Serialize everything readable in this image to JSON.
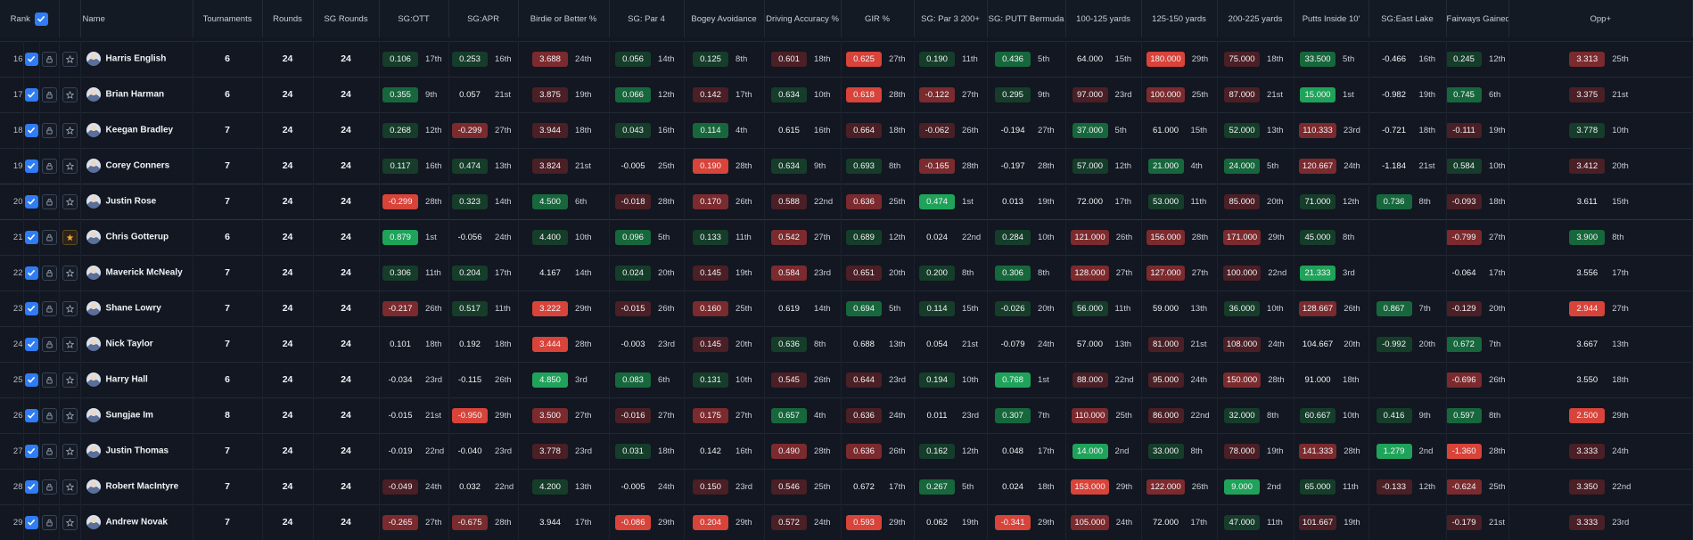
{
  "columns": {
    "rank": "Rank",
    "name": "Name",
    "tournaments": "Tournaments",
    "rounds": "Rounds",
    "sg_rounds": "SG Rounds",
    "stats": [
      "SG:OTT",
      "SG:APR",
      "Birdie or Better %",
      "SG: Par 4",
      "Bogey Avoidance",
      "Driving Accuracy %",
      "GIR %",
      "SG: Par 3 200+",
      "SG: PUTT Bermuda",
      "100-125 yards",
      "125-150 yards",
      "200-225 yards",
      "Putts Inside 10'",
      "SG:East Lake",
      "Fairways Gained",
      "Opp+"
    ]
  },
  "colors": {
    "strong_green": "#1fa35a",
    "green": "#17673c",
    "light_green": "#153d2a",
    "light_red": "#4a1f25",
    "red": "#7b2a2e",
    "strong_red": "#d8433a",
    "accent": "#2f7cf5"
  },
  "rows": [
    {
      "rank": "16",
      "name": "Harris English",
      "tournaments": "6",
      "rounds": "24",
      "sg_rounds": "24",
      "fav": false,
      "stats": [
        [
          "0.106",
          "17th",
          "g3"
        ],
        [
          "0.253",
          "16th",
          "g3"
        ],
        [
          "3.688",
          "24th",
          "r2"
        ],
        [
          "0.056",
          "14th",
          "g3"
        ],
        [
          "0.125",
          "8th",
          "g3"
        ],
        [
          "0.601",
          "18th",
          "r3"
        ],
        [
          "0.625",
          "27th",
          "sr"
        ],
        [
          "0.190",
          "11th",
          "g3"
        ],
        [
          "0.436",
          "5th",
          "g2"
        ],
        [
          "64.000",
          "15th",
          "n"
        ],
        [
          "180.000",
          "29th",
          "sr"
        ],
        [
          "75.000",
          "18th",
          "r3"
        ],
        [
          "33.500",
          "5th",
          "g2"
        ],
        [
          "-0.466",
          "16th",
          "n"
        ],
        [
          "0.245",
          "12th",
          "g3"
        ],
        [
          "3.313",
          "25th",
          "r2"
        ]
      ]
    },
    {
      "rank": "17",
      "name": "Brian Harman",
      "tournaments": "6",
      "rounds": "24",
      "sg_rounds": "24",
      "fav": false,
      "stats": [
        [
          "0.355",
          "9th",
          "g2"
        ],
        [
          "0.057",
          "21st",
          "n"
        ],
        [
          "3.875",
          "19th",
          "r3"
        ],
        [
          "0.066",
          "12th",
          "g2"
        ],
        [
          "0.142",
          "17th",
          "r3"
        ],
        [
          "0.634",
          "10th",
          "g3"
        ],
        [
          "0.618",
          "28th",
          "sr"
        ],
        [
          "-0.122",
          "27th",
          "r2"
        ],
        [
          "0.295",
          "9th",
          "g3"
        ],
        [
          "97.000",
          "23rd",
          "r3"
        ],
        [
          "100.000",
          "25th",
          "r2"
        ],
        [
          "87.000",
          "21st",
          "r3"
        ],
        [
          "15.000",
          "1st",
          "sg"
        ],
        [
          "-0.982",
          "19th",
          "n"
        ],
        [
          "0.745",
          "6th",
          "g2"
        ],
        [
          "3.375",
          "21st",
          "r3"
        ]
      ]
    },
    {
      "rank": "18",
      "name": "Keegan Bradley",
      "tournaments": "7",
      "rounds": "24",
      "sg_rounds": "24",
      "fav": false,
      "stats": [
        [
          "0.268",
          "12th",
          "g3"
        ],
        [
          "-0.299",
          "27th",
          "r2"
        ],
        [
          "3.944",
          "18th",
          "r3"
        ],
        [
          "0.043",
          "16th",
          "g3"
        ],
        [
          "0.114",
          "4th",
          "g2"
        ],
        [
          "0.615",
          "16th",
          "n"
        ],
        [
          "0.664",
          "18th",
          "r3"
        ],
        [
          "-0.062",
          "26th",
          "r3"
        ],
        [
          "-0.194",
          "27th",
          "n"
        ],
        [
          "37.000",
          "5th",
          "g2"
        ],
        [
          "61.000",
          "15th",
          "n"
        ],
        [
          "52.000",
          "13th",
          "g3"
        ],
        [
          "110.333",
          "23rd",
          "r2"
        ],
        [
          "-0.721",
          "18th",
          "n"
        ],
        [
          "-0.111",
          "19th",
          "r3"
        ],
        [
          "3.778",
          "10th",
          "g3"
        ]
      ]
    },
    {
      "rank": "19",
      "name": "Corey Conners",
      "tournaments": "7",
      "rounds": "24",
      "sg_rounds": "24",
      "fav": false,
      "stats": [
        [
          "0.117",
          "16th",
          "g3"
        ],
        [
          "0.474",
          "13th",
          "g3"
        ],
        [
          "3.824",
          "21st",
          "r3"
        ],
        [
          "-0.005",
          "25th",
          "n"
        ],
        [
          "0.190",
          "28th",
          "sr"
        ],
        [
          "0.634",
          "9th",
          "g3"
        ],
        [
          "0.693",
          "8th",
          "g3"
        ],
        [
          "-0.165",
          "28th",
          "r2"
        ],
        [
          "-0.197",
          "28th",
          "n"
        ],
        [
          "57.000",
          "12th",
          "g3"
        ],
        [
          "21.000",
          "4th",
          "g2"
        ],
        [
          "24.000",
          "5th",
          "g2"
        ],
        [
          "120.667",
          "24th",
          "r2"
        ],
        [
          "-1.184",
          "21st",
          "n"
        ],
        [
          "0.584",
          "10th",
          "g3"
        ],
        [
          "3.412",
          "20th",
          "r3"
        ]
      ]
    },
    {
      "rank": "20",
      "name": "Justin Rose",
      "tournaments": "7",
      "rounds": "24",
      "sg_rounds": "24",
      "fav": false,
      "stats": [
        [
          "-0.299",
          "28th",
          "sr"
        ],
        [
          "0.323",
          "14th",
          "g3"
        ],
        [
          "4.500",
          "6th",
          "g2"
        ],
        [
          "-0.018",
          "28th",
          "r3"
        ],
        [
          "0.170",
          "26th",
          "r2"
        ],
        [
          "0.588",
          "22nd",
          "r3"
        ],
        [
          "0.636",
          "25th",
          "r2"
        ],
        [
          "0.474",
          "1st",
          "sg"
        ],
        [
          "0.013",
          "19th",
          "n"
        ],
        [
          "72.000",
          "17th",
          "n"
        ],
        [
          "53.000",
          "11th",
          "g3"
        ],
        [
          "85.000",
          "20th",
          "r3"
        ],
        [
          "71.000",
          "12th",
          "g3"
        ],
        [
          "0.736",
          "8th",
          "g2"
        ],
        [
          "-0.093",
          "18th",
          "r3"
        ],
        [
          "3.611",
          "15th",
          "n"
        ]
      ]
    },
    {
      "rank": "21",
      "name": "Chris Gotterup",
      "tournaments": "6",
      "rounds": "24",
      "sg_rounds": "24",
      "fav": true,
      "stats": [
        [
          "0.879",
          "1st",
          "sg"
        ],
        [
          "-0.056",
          "24th",
          "n"
        ],
        [
          "4.400",
          "10th",
          "g3"
        ],
        [
          "0.096",
          "5th",
          "g2"
        ],
        [
          "0.133",
          "11th",
          "g3"
        ],
        [
          "0.542",
          "27th",
          "r2"
        ],
        [
          "0.689",
          "12th",
          "g3"
        ],
        [
          "0.024",
          "22nd",
          "n"
        ],
        [
          "0.284",
          "10th",
          "g3"
        ],
        [
          "121.000",
          "26th",
          "r2"
        ],
        [
          "156.000",
          "28th",
          "r2"
        ],
        [
          "171.000",
          "29th",
          "r2"
        ],
        [
          "45.000",
          "8th",
          "g3"
        ],
        [
          "",
          "",
          ""
        ],
        [
          "-0.799",
          "27th",
          "r2"
        ],
        [
          "3.900",
          "8th",
          "g2"
        ]
      ]
    },
    {
      "rank": "22",
      "name": "Maverick McNealy",
      "tournaments": "7",
      "rounds": "24",
      "sg_rounds": "24",
      "fav": false,
      "stats": [
        [
          "0.306",
          "11th",
          "g3"
        ],
        [
          "0.204",
          "17th",
          "g3"
        ],
        [
          "4.167",
          "14th",
          "n"
        ],
        [
          "0.024",
          "20th",
          "g3"
        ],
        [
          "0.145",
          "19th",
          "r3"
        ],
        [
          "0.584",
          "23rd",
          "r2"
        ],
        [
          "0.651",
          "20th",
          "r3"
        ],
        [
          "0.200",
          "8th",
          "g3"
        ],
        [
          "0.306",
          "8th",
          "g2"
        ],
        [
          "128.000",
          "27th",
          "r2"
        ],
        [
          "127.000",
          "27th",
          "r2"
        ],
        [
          "100.000",
          "22nd",
          "r3"
        ],
        [
          "21.333",
          "3rd",
          "sg"
        ],
        [
          "",
          "",
          ""
        ],
        [
          "-0.064",
          "17th",
          "n"
        ],
        [
          "3.556",
          "17th",
          "n"
        ]
      ]
    },
    {
      "rank": "23",
      "name": "Shane Lowry",
      "tournaments": "7",
      "rounds": "24",
      "sg_rounds": "24",
      "fav": false,
      "stats": [
        [
          "-0.217",
          "26th",
          "r2"
        ],
        [
          "0.517",
          "11th",
          "g3"
        ],
        [
          "3.222",
          "29th",
          "sr"
        ],
        [
          "-0.015",
          "26th",
          "r3"
        ],
        [
          "0.160",
          "25th",
          "r2"
        ],
        [
          "0.619",
          "14th",
          "n"
        ],
        [
          "0.694",
          "5th",
          "g2"
        ],
        [
          "0.114",
          "15th",
          "g3"
        ],
        [
          "-0.026",
          "20th",
          "g3"
        ],
        [
          "56.000",
          "11th",
          "g3"
        ],
        [
          "59.000",
          "13th",
          "n"
        ],
        [
          "36.000",
          "10th",
          "g3"
        ],
        [
          "128.667",
          "26th",
          "r2"
        ],
        [
          "0.867",
          "7th",
          "g2"
        ],
        [
          "-0.129",
          "20th",
          "r3"
        ],
        [
          "2.944",
          "27th",
          "sr"
        ]
      ]
    },
    {
      "rank": "24",
      "name": "Nick Taylor",
      "tournaments": "7",
      "rounds": "24",
      "sg_rounds": "24",
      "fav": false,
      "stats": [
        [
          "0.101",
          "18th",
          "n"
        ],
        [
          "0.192",
          "18th",
          "n"
        ],
        [
          "3.444",
          "28th",
          "sr"
        ],
        [
          "-0.003",
          "23rd",
          "n"
        ],
        [
          "0.145",
          "20th",
          "r3"
        ],
        [
          "0.636",
          "8th",
          "g3"
        ],
        [
          "0.688",
          "13th",
          "n"
        ],
        [
          "0.054",
          "21st",
          "n"
        ],
        [
          "-0.079",
          "24th",
          "n"
        ],
        [
          "57.000",
          "13th",
          "n"
        ],
        [
          "81.000",
          "21st",
          "r3"
        ],
        [
          "108.000",
          "24th",
          "r3"
        ],
        [
          "104.667",
          "20th",
          "n"
        ],
        [
          "-0.992",
          "20th",
          "g3"
        ],
        [
          "0.672",
          "7th",
          "g2"
        ],
        [
          "3.667",
          "13th",
          "n"
        ]
      ]
    },
    {
      "rank": "25",
      "name": "Harry Hall",
      "tournaments": "6",
      "rounds": "24",
      "sg_rounds": "24",
      "fav": false,
      "stats": [
        [
          "-0.034",
          "23rd",
          "n"
        ],
        [
          "-0.115",
          "26th",
          "n"
        ],
        [
          "4.850",
          "3rd",
          "sg"
        ],
        [
          "0.083",
          "6th",
          "g2"
        ],
        [
          "0.131",
          "10th",
          "g3"
        ],
        [
          "0.545",
          "26th",
          "r3"
        ],
        [
          "0.644",
          "23rd",
          "r3"
        ],
        [
          "0.194",
          "10th",
          "g3"
        ],
        [
          "0.768",
          "1st",
          "sg"
        ],
        [
          "88.000",
          "22nd",
          "r3"
        ],
        [
          "95.000",
          "24th",
          "r3"
        ],
        [
          "150.000",
          "28th",
          "r2"
        ],
        [
          "91.000",
          "18th",
          "n"
        ],
        [
          "",
          "",
          ""
        ],
        [
          "-0.696",
          "26th",
          "r2"
        ],
        [
          "3.550",
          "18th",
          "n"
        ]
      ]
    },
    {
      "rank": "26",
      "name": "Sungjae Im",
      "tournaments": "8",
      "rounds": "24",
      "sg_rounds": "24",
      "fav": false,
      "stats": [
        [
          "-0.015",
          "21st",
          "n"
        ],
        [
          "-0.950",
          "29th",
          "sr"
        ],
        [
          "3.500",
          "27th",
          "r2"
        ],
        [
          "-0.016",
          "27th",
          "r3"
        ],
        [
          "0.175",
          "27th",
          "r2"
        ],
        [
          "0.657",
          "4th",
          "g2"
        ],
        [
          "0.636",
          "24th",
          "r3"
        ],
        [
          "0.011",
          "23rd",
          "n"
        ],
        [
          "0.307",
          "7th",
          "g2"
        ],
        [
          "110.000",
          "25th",
          "r2"
        ],
        [
          "86.000",
          "22nd",
          "r3"
        ],
        [
          "32.000",
          "8th",
          "g3"
        ],
        [
          "60.667",
          "10th",
          "g3"
        ],
        [
          "0.416",
          "9th",
          "g3"
        ],
        [
          "0.597",
          "8th",
          "g2"
        ],
        [
          "2.500",
          "29th",
          "sr"
        ]
      ]
    },
    {
      "rank": "27",
      "name": "Justin Thomas",
      "tournaments": "7",
      "rounds": "24",
      "sg_rounds": "24",
      "fav": false,
      "stats": [
        [
          "-0.019",
          "22nd",
          "n"
        ],
        [
          "-0.040",
          "23rd",
          "n"
        ],
        [
          "3.778",
          "23rd",
          "r3"
        ],
        [
          "0.031",
          "18th",
          "g3"
        ],
        [
          "0.142",
          "16th",
          "n"
        ],
        [
          "0.490",
          "28th",
          "r2"
        ],
        [
          "0.636",
          "26th",
          "r2"
        ],
        [
          "0.162",
          "12th",
          "g3"
        ],
        [
          "0.048",
          "17th",
          "n"
        ],
        [
          "14.000",
          "2nd",
          "sg"
        ],
        [
          "33.000",
          "8th",
          "g3"
        ],
        [
          "78.000",
          "19th",
          "r3"
        ],
        [
          "141.333",
          "28th",
          "r2"
        ],
        [
          "1.279",
          "2nd",
          "sg"
        ],
        [
          "-1.360",
          "28th",
          "sr"
        ],
        [
          "3.333",
          "24th",
          "r3"
        ]
      ]
    },
    {
      "rank": "28",
      "name": "Robert MacIntyre",
      "tournaments": "7",
      "rounds": "24",
      "sg_rounds": "24",
      "fav": false,
      "stats": [
        [
          "-0.049",
          "24th",
          "r3"
        ],
        [
          "0.032",
          "22nd",
          "n"
        ],
        [
          "4.200",
          "13th",
          "g3"
        ],
        [
          "-0.005",
          "24th",
          "n"
        ],
        [
          "0.150",
          "23rd",
          "r3"
        ],
        [
          "0.546",
          "25th",
          "r3"
        ],
        [
          "0.672",
          "17th",
          "n"
        ],
        [
          "0.267",
          "5th",
          "g2"
        ],
        [
          "0.024",
          "18th",
          "n"
        ],
        [
          "153.000",
          "29th",
          "sr"
        ],
        [
          "122.000",
          "26th",
          "r2"
        ],
        [
          "9.000",
          "2nd",
          "sg"
        ],
        [
          "65.000",
          "11th",
          "g3"
        ],
        [
          "-0.133",
          "12th",
          "r3"
        ],
        [
          "-0.624",
          "25th",
          "r2"
        ],
        [
          "3.350",
          "22nd",
          "r3"
        ]
      ]
    },
    {
      "rank": "29",
      "name": "Andrew Novak",
      "tournaments": "7",
      "rounds": "24",
      "sg_rounds": "24",
      "fav": false,
      "stats": [
        [
          "-0.265",
          "27th",
          "r2"
        ],
        [
          "-0.675",
          "28th",
          "r2"
        ],
        [
          "3.944",
          "17th",
          "n"
        ],
        [
          "-0.086",
          "29th",
          "sr"
        ],
        [
          "0.204",
          "29th",
          "sr"
        ],
        [
          "0.572",
          "24th",
          "r3"
        ],
        [
          "0.593",
          "29th",
          "sr"
        ],
        [
          "0.062",
          "19th",
          "n"
        ],
        [
          "-0.341",
          "29th",
          "sr"
        ],
        [
          "105.000",
          "24th",
          "r2"
        ],
        [
          "72.000",
          "17th",
          "n"
        ],
        [
          "47.000",
          "11th",
          "g3"
        ],
        [
          "101.667",
          "19th",
          "r3"
        ],
        [
          "",
          "",
          ""
        ],
        [
          "-0.179",
          "21st",
          "r3"
        ],
        [
          "3.333",
          "23rd",
          "r3"
        ]
      ]
    }
  ]
}
